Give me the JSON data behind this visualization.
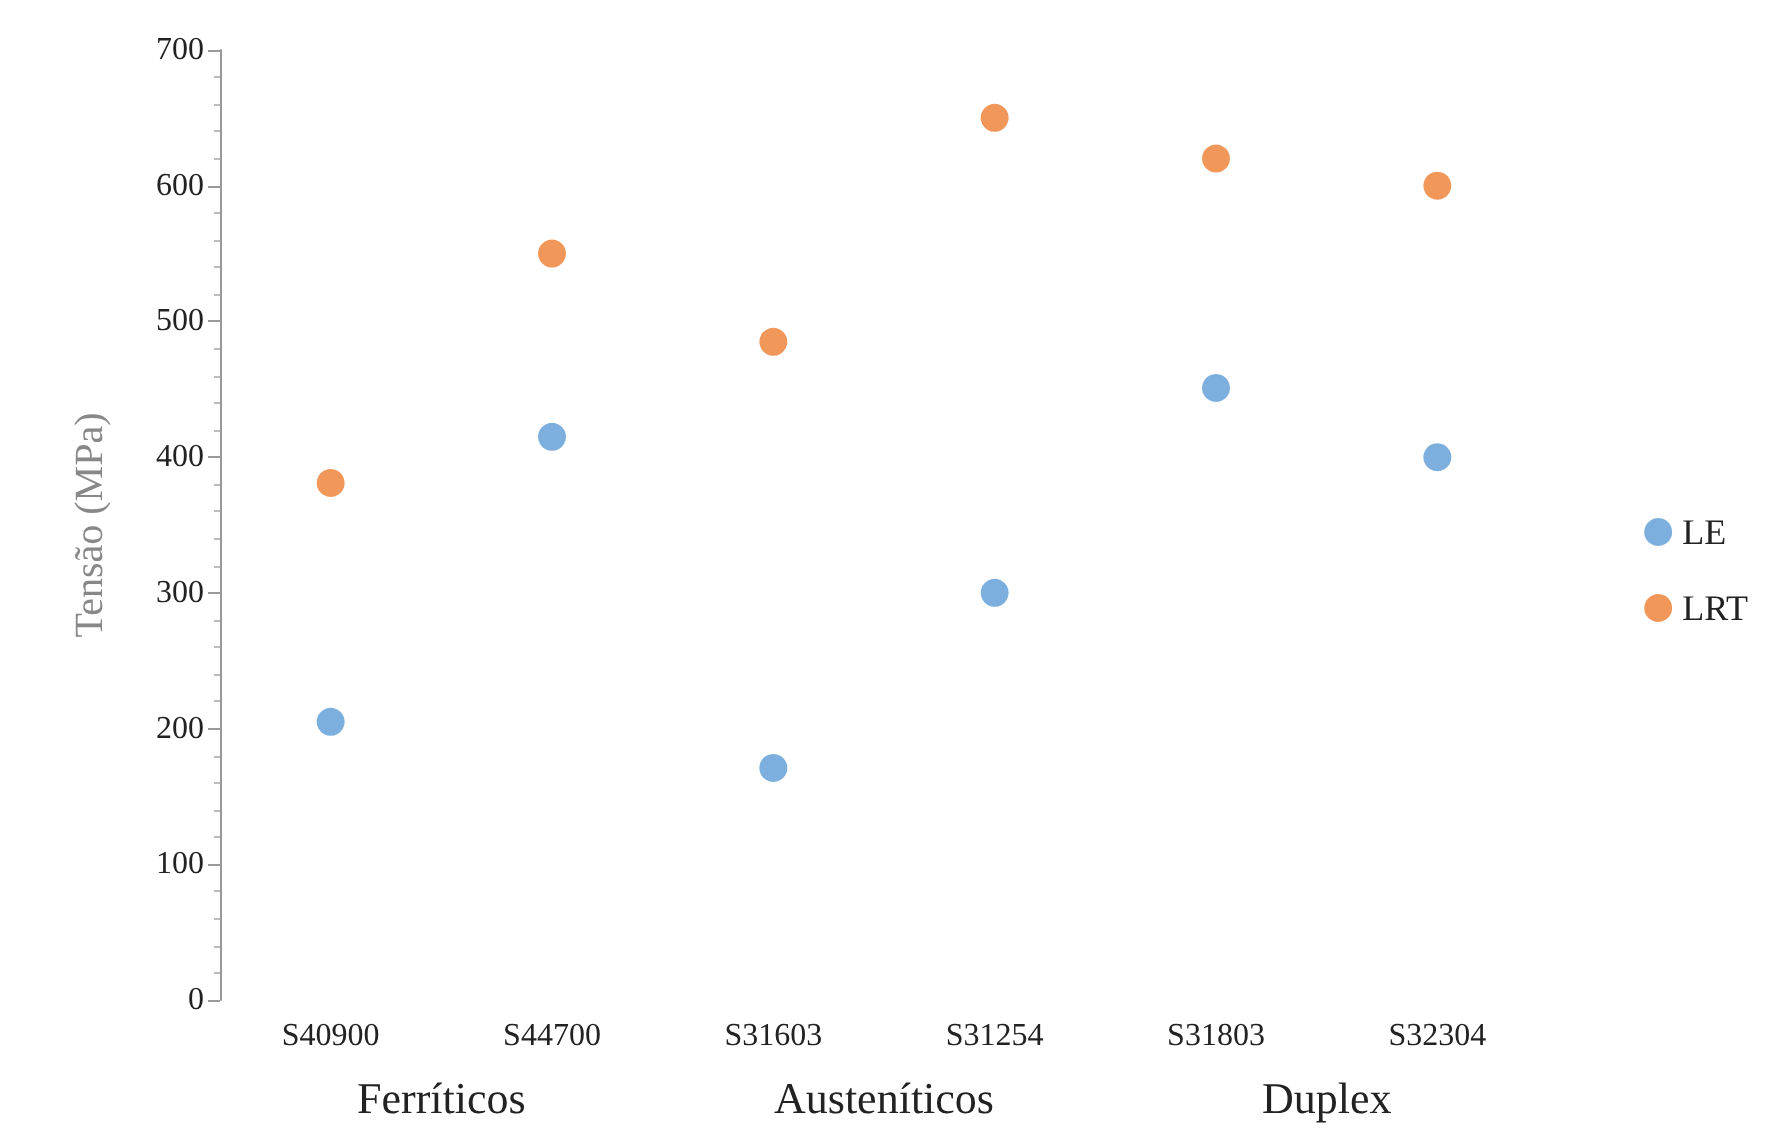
{
  "chart_data": {
    "type": "scatter",
    "ylabel": "Tensão (MPa)",
    "categories": [
      "S40900",
      "S44700",
      "S31603",
      "S31254",
      "S31803",
      "S32304"
    ],
    "series": [
      {
        "name": "LE",
        "color": "#5b9bd5",
        "values": [
          205,
          415,
          171,
          300,
          451,
          400
        ]
      },
      {
        "name": "LRT",
        "color": "#ed7d31",
        "values": [
          381,
          550,
          485,
          650,
          620,
          600
        ]
      }
    ],
    "ylim": [
      0,
      700
    ],
    "yticks": [
      0,
      100,
      200,
      300,
      400,
      500,
      600,
      700
    ],
    "annotations": [
      "Ferríticos",
      "Austeníticos",
      "Duplex"
    ],
    "grid": false,
    "legend": "right",
    "marker": "circle"
  }
}
